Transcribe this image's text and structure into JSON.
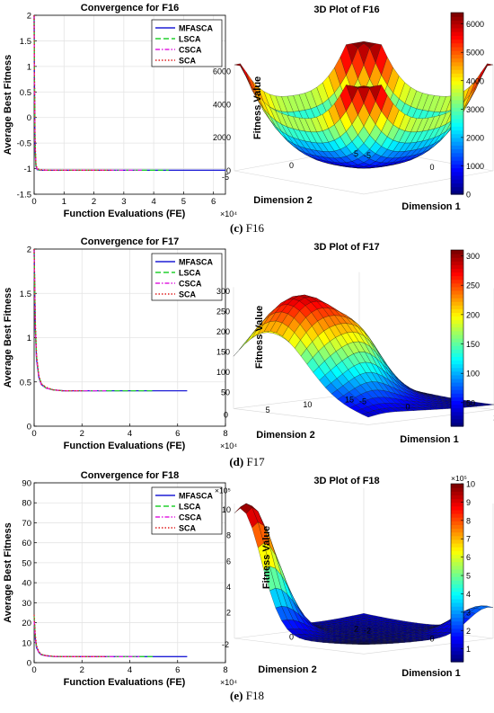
{
  "legend_labels": [
    "MFASCA",
    "LSCA",
    "CSCA",
    "SCA"
  ],
  "line_styles": {
    "MFASCA": {
      "color": "#1f1fd6",
      "dash": ""
    },
    "LSCA": {
      "color": "#22d12e",
      "dash": "6 3"
    },
    "CSCA": {
      "color": "#e01fe0",
      "dash": "5 2 1.5 2"
    },
    "SCA": {
      "color": "#e02020",
      "dash": "1.5 2"
    }
  },
  "colormap": [
    "#00007f",
    "#0000ff",
    "#007fff",
    "#00ffff",
    "#7fff7f",
    "#ffff00",
    "#ff7f00",
    "#ff0000",
    "#7f0000"
  ],
  "captions": [
    {
      "tag": "(c)",
      "text": " F16"
    },
    {
      "tag": "(d)",
      "text": " F17"
    },
    {
      "tag": "(e)",
      "text": " F18"
    }
  ],
  "chart_data": [
    {
      "type": "line",
      "title": "Convergence for F16",
      "xlabel": "Function Evaluations (FE)",
      "ylabel": "Average Best Fitness",
      "x_multiplier": "×10⁴",
      "xlim": [
        0,
        6.4
      ],
      "ylim": [
        -1.5,
        2
      ],
      "xticks": [
        0,
        1,
        2,
        3,
        4,
        5,
        6
      ],
      "yticks": [
        -1.5,
        -1,
        -0.5,
        0,
        0.5,
        1,
        1.5,
        2
      ],
      "grid": true,
      "legend_position": "top-right",
      "series": [
        {
          "name": "MFASCA",
          "x": [
            0,
            0.01,
            0.03,
            0.06,
            0.1,
            0.2,
            0.5,
            1,
            2,
            3,
            4,
            5,
            6.4
          ],
          "y": [
            2,
            0.8,
            -0.6,
            -0.95,
            -1.02,
            -1.03,
            -1.03,
            -1.03,
            -1.03,
            -1.03,
            -1.03,
            -1.03,
            -1.03
          ]
        },
        {
          "name": "LSCA",
          "x": [
            0,
            0.01,
            0.03,
            0.06,
            0.1,
            0.2,
            0.5,
            1,
            2,
            3,
            4,
            4.5
          ],
          "y": [
            2,
            0.9,
            -0.5,
            -0.93,
            -1.01,
            -1.03,
            -1.03,
            -1.03,
            -1.03,
            -1.03,
            -1.03,
            -1.03
          ]
        },
        {
          "name": "CSCA",
          "x": [
            0,
            0.01,
            0.03,
            0.06,
            0.1,
            0.2,
            0.5,
            1,
            2,
            3,
            3.6
          ],
          "y": [
            2,
            0.85,
            -0.55,
            -0.94,
            -1.01,
            -1.03,
            -1.03,
            -1.03,
            -1.03,
            -1.03,
            -1.03
          ]
        },
        {
          "name": "SCA",
          "x": [
            0,
            0.01,
            0.03,
            0.06,
            0.1,
            0.2,
            0.5,
            1,
            2,
            2.6
          ],
          "y": [
            2,
            1.0,
            -0.4,
            -0.9,
            -1.0,
            -1.02,
            -1.03,
            -1.03,
            -1.03,
            -1.03
          ]
        }
      ]
    },
    {
      "type": "surface",
      "title": "3D Plot of F16",
      "xlabel": "Dimension 1",
      "ylabel": "Dimension 2",
      "zlabel": "Fitness Value",
      "xticks": [
        -5,
        0,
        5
      ],
      "yticks": [
        -5,
        0,
        5
      ],
      "zticks": [
        0,
        2000,
        4000,
        6000
      ],
      "colorbar_ticks": [
        0,
        1000,
        2000,
        3000,
        4000,
        5000,
        6000
      ],
      "colorbar_range": [
        0,
        6400
      ]
    },
    {
      "type": "line",
      "title": "Convergence for F17",
      "xlabel": "Function Evaluations (FE)",
      "ylabel": "Average Best Fitness",
      "x_multiplier": "×10⁴",
      "xlim": [
        0,
        8
      ],
      "ylim": [
        0,
        2
      ],
      "xticks": [
        0,
        2,
        4,
        6,
        8
      ],
      "yticks": [
        0,
        0.5,
        1,
        1.5,
        2
      ],
      "grid": true,
      "legend_position": "top-right",
      "series": [
        {
          "name": "MFASCA",
          "x": [
            0,
            0.05,
            0.1,
            0.2,
            0.3,
            0.5,
            0.8,
            1.2,
            2,
            3,
            4,
            5,
            6.4
          ],
          "y": [
            2,
            1.1,
            0.75,
            0.55,
            0.47,
            0.43,
            0.41,
            0.4,
            0.4,
            0.4,
            0.4,
            0.4,
            0.4
          ]
        },
        {
          "name": "LSCA",
          "x": [
            0,
            0.05,
            0.1,
            0.2,
            0.3,
            0.5,
            0.8,
            1.2,
            2,
            3,
            4,
            5
          ],
          "y": [
            2,
            1.15,
            0.78,
            0.56,
            0.48,
            0.43,
            0.41,
            0.4,
            0.4,
            0.4,
            0.4,
            0.4
          ]
        },
        {
          "name": "CSCA",
          "x": [
            0,
            0.05,
            0.1,
            0.2,
            0.3,
            0.5,
            0.8,
            1.2,
            2,
            3
          ],
          "y": [
            2,
            1.12,
            0.76,
            0.55,
            0.47,
            0.43,
            0.41,
            0.4,
            0.4,
            0.4
          ]
        },
        {
          "name": "SCA",
          "x": [
            0,
            0.05,
            0.1,
            0.2,
            0.3,
            0.5,
            0.8,
            1.2,
            2
          ],
          "y": [
            2,
            1.2,
            0.8,
            0.57,
            0.48,
            0.44,
            0.41,
            0.4,
            0.4
          ]
        }
      ]
    },
    {
      "type": "surface",
      "title": "3D Plot of F17",
      "xlabel": "Dimension 1",
      "ylabel": "Dimension 2",
      "zlabel": "Fitness Value",
      "xticks": [
        -5,
        0,
        5,
        10
      ],
      "yticks": [
        0,
        5,
        10,
        15
      ],
      "zticks": [
        50,
        100,
        150,
        200,
        250,
        300
      ],
      "colorbar_ticks": [
        50,
        100,
        150,
        200,
        250,
        300
      ],
      "colorbar_range": [
        10,
        310
      ]
    },
    {
      "type": "line",
      "title": "Convergence for F18",
      "xlabel": "Function Evaluations (FE)",
      "ylabel": "Average Best Fitness",
      "x_multiplier": "×10⁴",
      "xlim": [
        0,
        8
      ],
      "ylim": [
        0,
        90
      ],
      "xticks": [
        0,
        2,
        4,
        6,
        8
      ],
      "yticks": [
        0,
        10,
        20,
        30,
        40,
        50,
        60,
        70,
        80,
        90
      ],
      "grid": true,
      "legend_position": "top-right",
      "series": [
        {
          "name": "MFASCA",
          "x": [
            0,
            0.05,
            0.1,
            0.2,
            0.3,
            0.5,
            0.8,
            1.2,
            2,
            3,
            4,
            5,
            6.4
          ],
          "y": [
            22,
            12,
            7.5,
            5,
            4,
            3.4,
            3.1,
            3,
            3,
            3,
            3,
            3,
            3
          ]
        },
        {
          "name": "LSCA",
          "x": [
            0,
            0.05,
            0.1,
            0.2,
            0.3,
            0.5,
            0.8,
            1.2,
            2,
            3,
            4,
            5
          ],
          "y": [
            23,
            13,
            8,
            5.2,
            4.1,
            3.5,
            3.1,
            3,
            3,
            3,
            3,
            3
          ]
        },
        {
          "name": "CSCA",
          "x": [
            0,
            0.05,
            0.1,
            0.2,
            0.3,
            0.5,
            0.8,
            1.2,
            2,
            3,
            4.4
          ],
          "y": [
            21,
            12,
            7.8,
            5.1,
            4,
            3.4,
            3.1,
            3,
            3,
            3,
            3
          ]
        },
        {
          "name": "SCA",
          "x": [
            0,
            0.05,
            0.1,
            0.2,
            0.3,
            0.5,
            0.8,
            1.2,
            2,
            3
          ],
          "y": [
            24,
            14,
            8.5,
            5.5,
            4.2,
            3.5,
            3.2,
            3,
            3,
            3
          ]
        }
      ]
    },
    {
      "type": "surface",
      "title": "3D Plot of F18",
      "xlabel": "Dimension 1",
      "ylabel": "Dimension 2",
      "zlabel": "Fitness Value",
      "z_multiplier": "×10⁵",
      "colorbar_multiplier": "×10⁵",
      "xticks": [
        -2,
        0,
        2
      ],
      "yticks": [
        -2,
        0,
        2
      ],
      "zticks": [
        2,
        4,
        6,
        8,
        10
      ],
      "colorbar_ticks": [
        1,
        2,
        3,
        4,
        5,
        6,
        7,
        8,
        9,
        10
      ],
      "colorbar_range": [
        0.3,
        10
      ]
    }
  ]
}
